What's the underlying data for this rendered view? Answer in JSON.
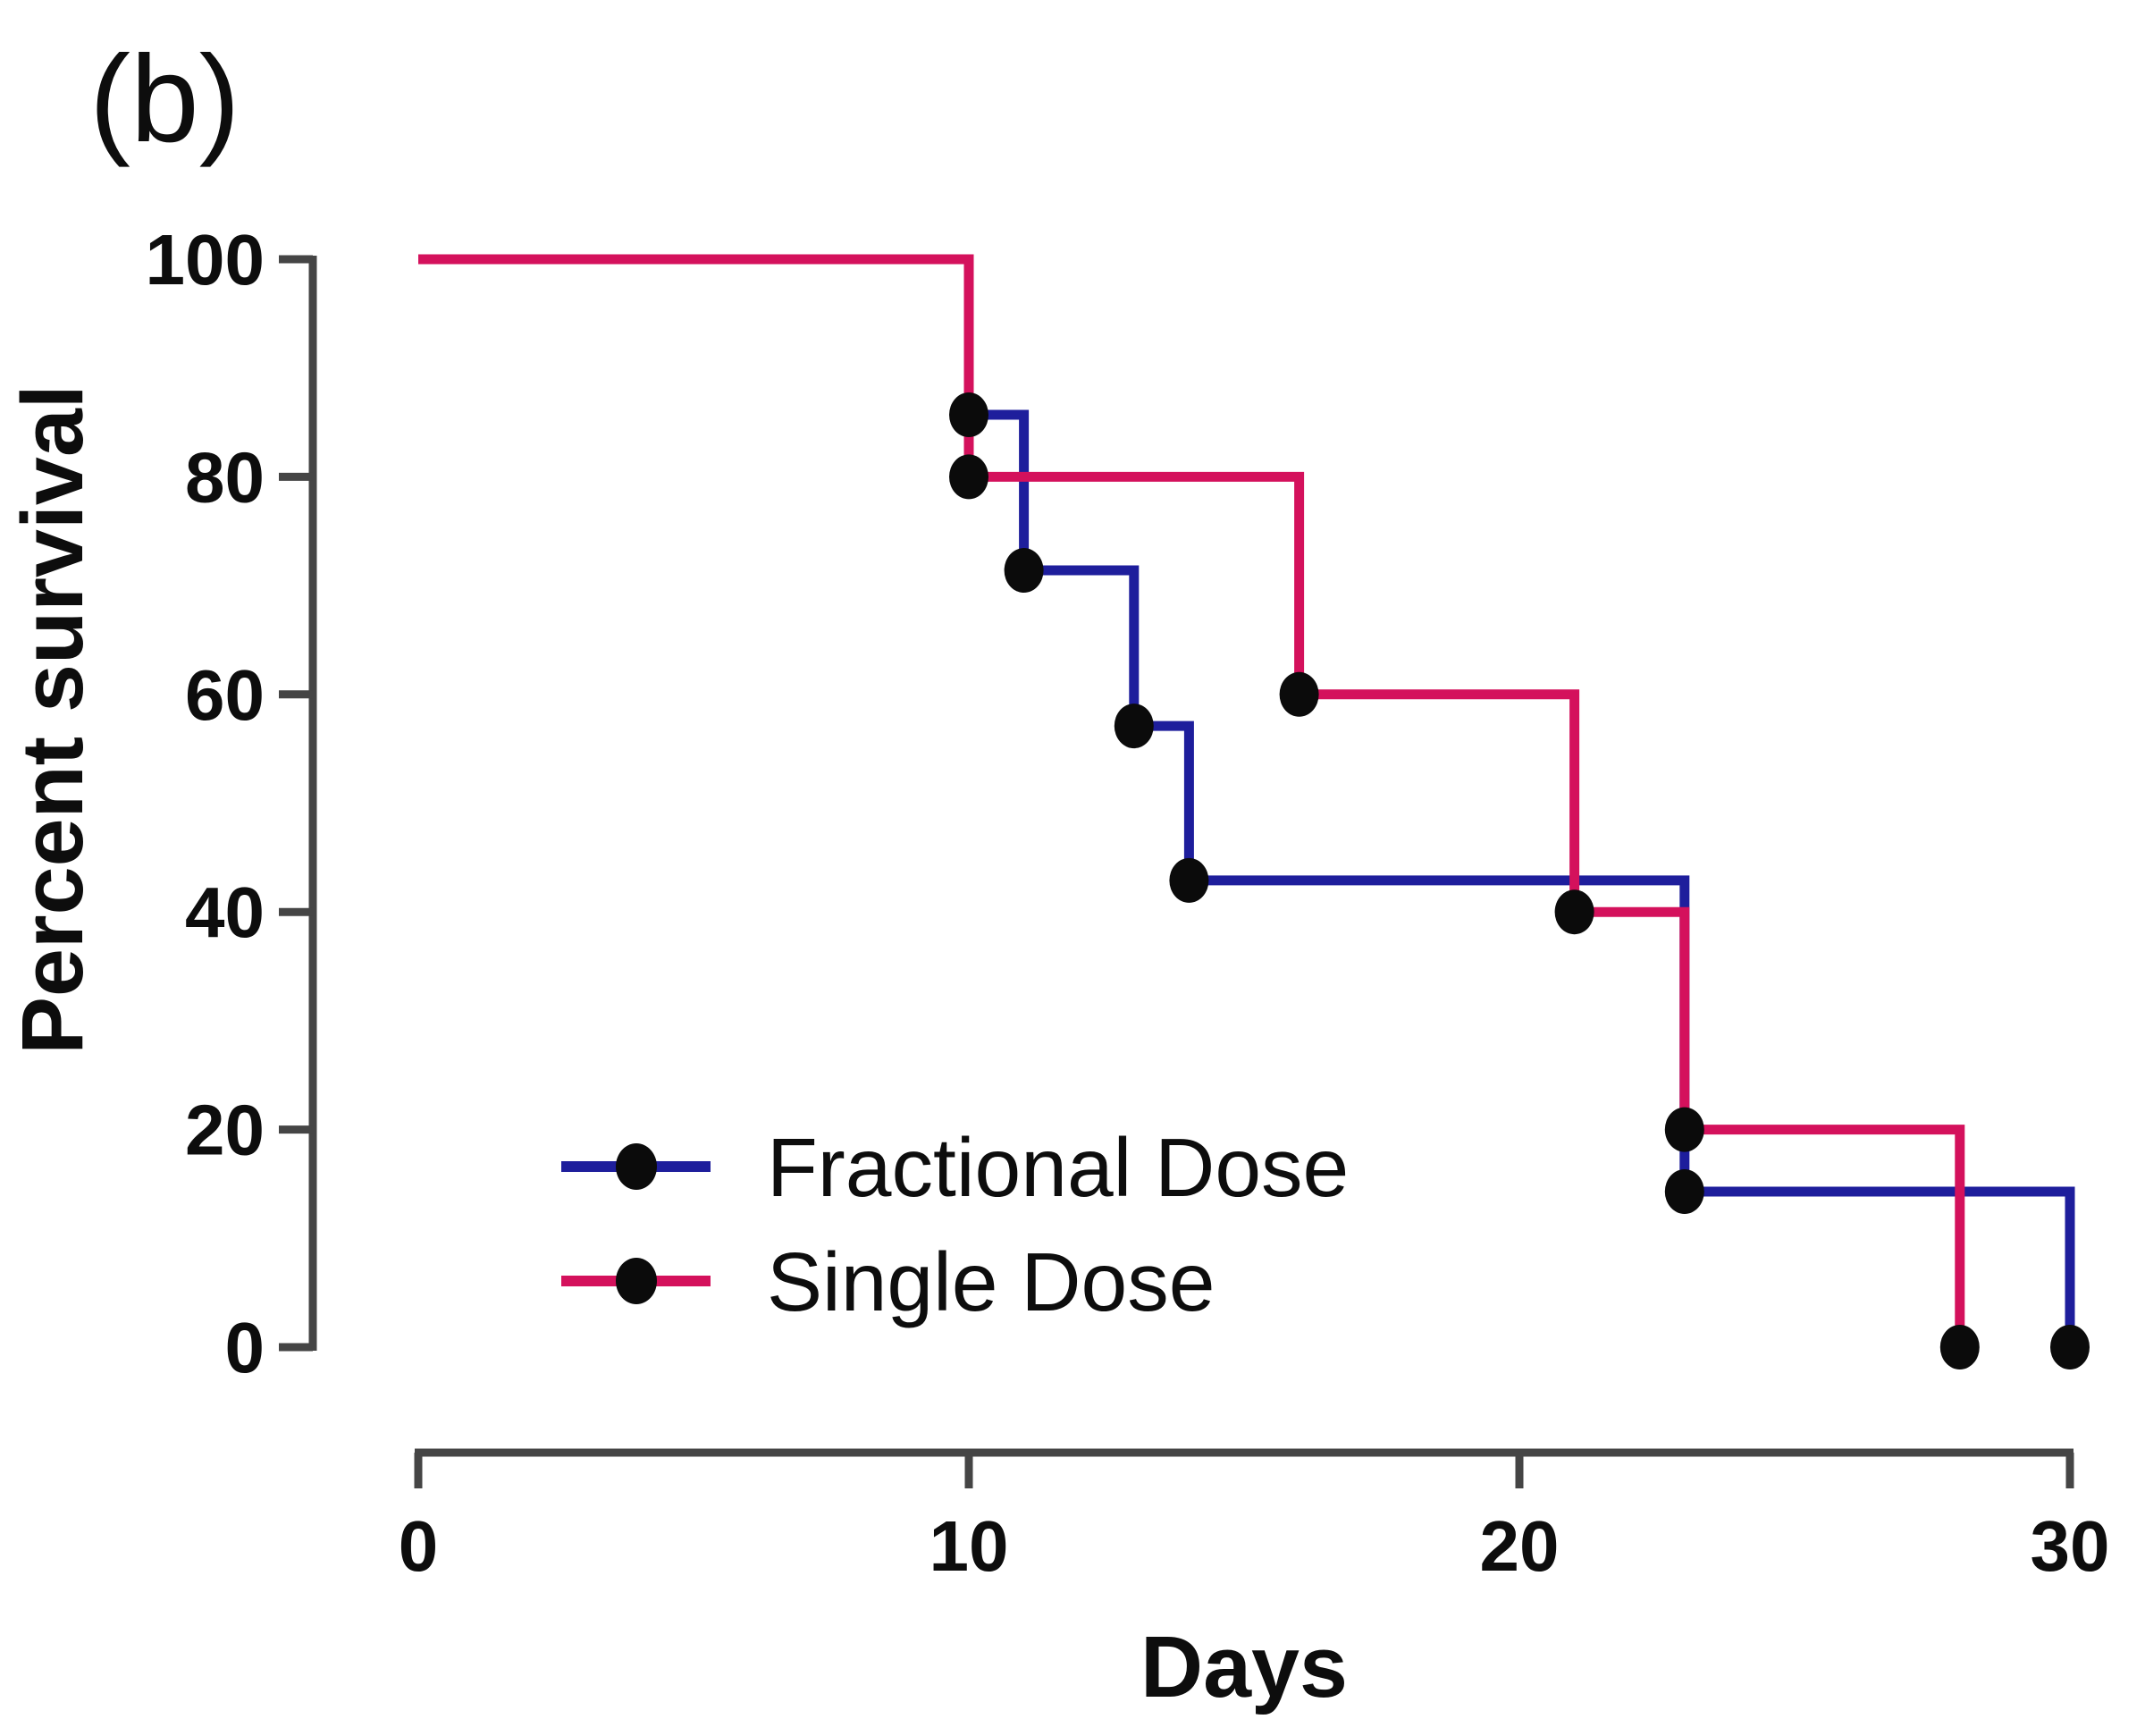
{
  "panel_label": "(b)",
  "colors": {
    "fractional": "#1e1e9c",
    "single": "#d4115c",
    "axis": "#454545",
    "marker": "#0b0b0b",
    "text": "#0d0d0d",
    "background": "#ffffff"
  },
  "y_axis": {
    "title": "Percent survival",
    "tick_labels": [
      "100",
      "80",
      "60",
      "40",
      "20",
      "0"
    ],
    "tick_values": [
      100,
      80,
      60,
      40,
      20,
      0
    ]
  },
  "x_axis": {
    "title": "Days",
    "tick_labels": [
      "0",
      "10",
      "20",
      "30"
    ],
    "tick_values": [
      0,
      10,
      20,
      30
    ]
  },
  "legend": [
    {
      "label": "Fractional Dose",
      "series": "fractional"
    },
    {
      "label": "Single Dose",
      "series": "single"
    }
  ],
  "chart_data": {
    "type": "line",
    "subtype": "kaplan-meier-step",
    "title": "(b)",
    "xlabel": "Days",
    "ylabel": "Percent survival",
    "xlim": [
      0,
      30
    ],
    "ylim": [
      0,
      100
    ],
    "x_ticks": [
      0,
      10,
      20,
      30
    ],
    "y_ticks": [
      0,
      20,
      40,
      60,
      80,
      100
    ],
    "grid": false,
    "legend_position": "inside-lower-left",
    "series": [
      {
        "name": "Fractional Dose",
        "color": "#1e1e9c",
        "steps": [
          [
            0,
            100
          ],
          [
            10,
            100
          ],
          [
            10,
            85.7
          ],
          [
            11,
            85.7
          ],
          [
            11,
            71.4
          ],
          [
            13,
            71.4
          ],
          [
            13,
            57.1
          ],
          [
            14,
            57.1
          ],
          [
            14,
            42.9
          ],
          [
            23,
            42.9
          ],
          [
            23,
            14.3
          ],
          [
            30,
            14.3
          ],
          [
            30,
            0
          ]
        ],
        "markers": [
          [
            10,
            85.7
          ],
          [
            11,
            71.4
          ],
          [
            13,
            57.1
          ],
          [
            14,
            42.9
          ],
          [
            23,
            14.3
          ],
          [
            30,
            0
          ]
        ]
      },
      {
        "name": "Single Dose",
        "color": "#d4115c",
        "steps": [
          [
            0,
            100
          ],
          [
            10,
            100
          ],
          [
            10,
            80
          ],
          [
            16,
            80
          ],
          [
            16,
            60
          ],
          [
            21,
            60
          ],
          [
            21,
            40
          ],
          [
            23,
            40
          ],
          [
            23,
            20
          ],
          [
            28,
            20
          ],
          [
            28,
            0
          ]
        ],
        "markers": [
          [
            10,
            80
          ],
          [
            16,
            60
          ],
          [
            21,
            40
          ],
          [
            23,
            20
          ],
          [
            28,
            0
          ]
        ]
      }
    ]
  }
}
